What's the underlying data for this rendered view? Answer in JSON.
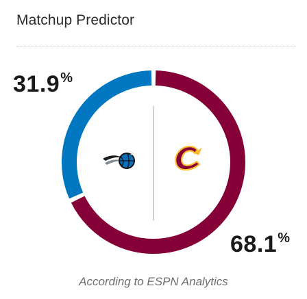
{
  "widget": {
    "title": "Matchup Predictor",
    "attribution": "According to ESPN Analytics"
  },
  "teams": [
    {
      "name": "Orlando Magic",
      "logo_icon": "magic-logo-icon",
      "win_probability": 31.9,
      "pct_number": "31.9",
      "pct_sign": "%",
      "color": "#0077c0"
    },
    {
      "name": "Cleveland Cavaliers",
      "logo_icon": "cavaliers-logo-icon",
      "win_probability": 68.1,
      "pct_number": "68.1",
      "pct_sign": "%",
      "color": "#860038"
    }
  ],
  "colors": {
    "away": "#0077c0",
    "home": "#860038",
    "accent_gold": "#fdbb30",
    "divider": "#c9cacc"
  }
}
